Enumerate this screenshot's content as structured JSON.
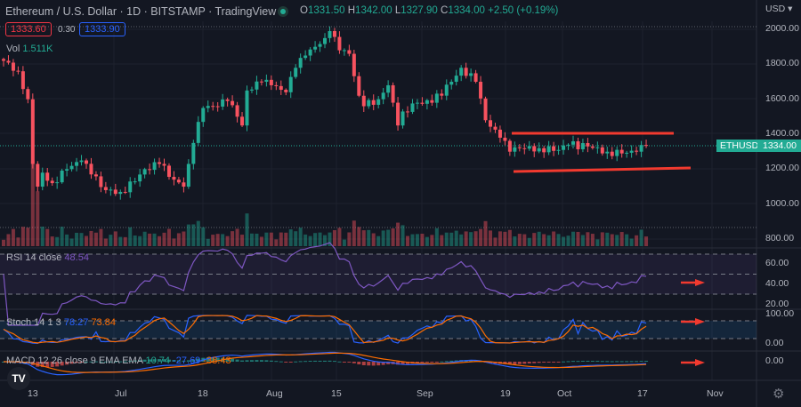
{
  "header": {
    "symbol": "Ethereum / U.S. Dollar",
    "interval": "1D",
    "exchange": "BITSTAMP",
    "source": "TradingView",
    "open_label": "O",
    "open": "1331.50",
    "high_label": "H",
    "high": "1342.00",
    "low_label": "L",
    "low": "1327.90",
    "close_label": "C",
    "close": "1334.00",
    "change": "+2.50 (+0.19%)"
  },
  "trade": {
    "sell": "1333.60",
    "spread": "0.30",
    "buy": "1333.90"
  },
  "volume": {
    "label": "Vol",
    "value": "1.511K"
  },
  "rsi": {
    "label": "RSI 14 close",
    "value": "48.54"
  },
  "stoch": {
    "label": "Stoch 14 1 3",
    "k": "78.27",
    "d": "73.84"
  },
  "macd": {
    "label": "MACD 12 26 close 9 EMA EMA",
    "hist": "10.74",
    "macd": "-27.69",
    "signal": "-38.43"
  },
  "price_axis": {
    "currency": "USD",
    "ticks": [
      "2000.00",
      "1800.00",
      "1600.00",
      "1400.00",
      "1200.00",
      "1000.00",
      "800.00"
    ],
    "symbol_tag": "ETHUSD",
    "last": "1334.00"
  },
  "rsi_axis": [
    "60.00",
    "40.00",
    "20.00"
  ],
  "stoch_axis": [
    "100.00",
    "0.00"
  ],
  "macd_axis": [
    "0.00"
  ],
  "time_axis": [
    "13",
    "Jul",
    "18",
    "Aug",
    "15",
    "Sep",
    "19",
    "Oct",
    "17",
    "Nov"
  ],
  "colors": {
    "up": "#22ab94",
    "down": "#f7525f",
    "rsi": "#7e57c2",
    "k": "#2962ff",
    "d": "#ff6d00",
    "annotation": "#f23a2f"
  },
  "chart_data": {
    "type": "candlestick",
    "start": "Jun 7",
    "ylim": [
      800,
      2000
    ],
    "close_anchors": [
      [
        0,
        1820
      ],
      [
        3,
        1760
      ],
      [
        5,
        1600
      ],
      [
        6,
        1230
      ],
      [
        7,
        1100
      ],
      [
        8,
        1180
      ],
      [
        10,
        1120
      ],
      [
        13,
        1200
      ],
      [
        16,
        1250
      ],
      [
        18,
        1170
      ],
      [
        21,
        1080
      ],
      [
        24,
        1070
      ],
      [
        27,
        1130
      ],
      [
        29,
        1200
      ],
      [
        32,
        1230
      ],
      [
        35,
        1140
      ],
      [
        37,
        1100
      ],
      [
        38,
        1230
      ],
      [
        39,
        1350
      ],
      [
        41,
        1550
      ],
      [
        43,
        1560
      ],
      [
        46,
        1590
      ],
      [
        48,
        1500
      ],
      [
        49,
        1450
      ],
      [
        50,
        1650
      ],
      [
        53,
        1700
      ],
      [
        55,
        1680
      ],
      [
        58,
        1640
      ],
      [
        60,
        1780
      ],
      [
        62,
        1850
      ],
      [
        64,
        1900
      ],
      [
        66,
        1950
      ],
      [
        67,
        1990
      ],
      [
        69,
        1880
      ],
      [
        71,
        1860
      ],
      [
        73,
        1620
      ],
      [
        74,
        1560
      ],
      [
        77,
        1600
      ],
      [
        79,
        1680
      ],
      [
        81,
        1450
      ],
      [
        82,
        1530
      ],
      [
        85,
        1580
      ],
      [
        88,
        1580
      ],
      [
        92,
        1700
      ],
      [
        94,
        1780
      ],
      [
        97,
        1700
      ],
      [
        99,
        1480
      ],
      [
        102,
        1380
      ],
      [
        104,
        1300
      ],
      [
        106,
        1320
      ],
      [
        110,
        1320
      ],
      [
        114,
        1310
      ],
      [
        116,
        1340
      ],
      [
        120,
        1330
      ],
      [
        124,
        1300
      ],
      [
        127,
        1290
      ],
      [
        130,
        1300
      ],
      [
        132,
        1334
      ]
    ],
    "trendlines": [
      {
        "from": [
          "Sep 20",
          1410
        ],
        "to": [
          "Oct 25",
          1410
        ]
      },
      {
        "from": [
          "Sep 20",
          1190
        ],
        "to": [
          "Oct 28",
          1210
        ]
      }
    ]
  }
}
